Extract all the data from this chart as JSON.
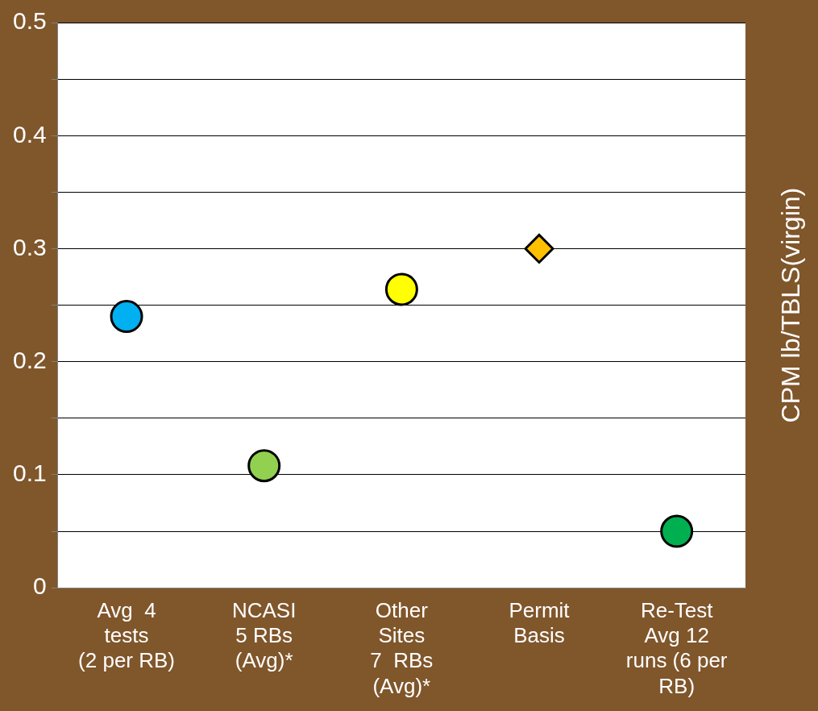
{
  "chart_data": {
    "type": "scatter",
    "ylabel": "CPM lb/TBLS(virgin)",
    "categories": [
      "Avg  4\ntests\n(2 per RB)",
      "NCASI\n5 RBs\n(Avg)*",
      "Other\nSites\n7  RBs\n(Avg)*",
      "Permit\nBasis",
      "Re-Test\nAvg 12\nruns (6 per\nRB)"
    ],
    "series": [
      {
        "values": [
          0.24,
          0.108,
          0.264,
          null,
          0.05
        ],
        "colors": [
          "#00b0f0",
          "#92d050",
          "#ffff00",
          null,
          "#00b050"
        ],
        "marker": "circle"
      },
      {
        "values": [
          null,
          null,
          null,
          0.3,
          null
        ],
        "color": "#ffc000",
        "marker": "diamond"
      }
    ],
    "ylim": [
      0,
      0.5
    ],
    "yticks": [
      0,
      {
        "value": 0.05,
        "label": null
      },
      0.1,
      {
        "value": 0.15,
        "label": null
      },
      0.2,
      {
        "value": 0.25,
        "label": null
      },
      0.3,
      {
        "value": 0.35,
        "label": null
      },
      0.4,
      {
        "value": 0.45,
        "label": null
      },
      0.5
    ],
    "grid": "y"
  }
}
